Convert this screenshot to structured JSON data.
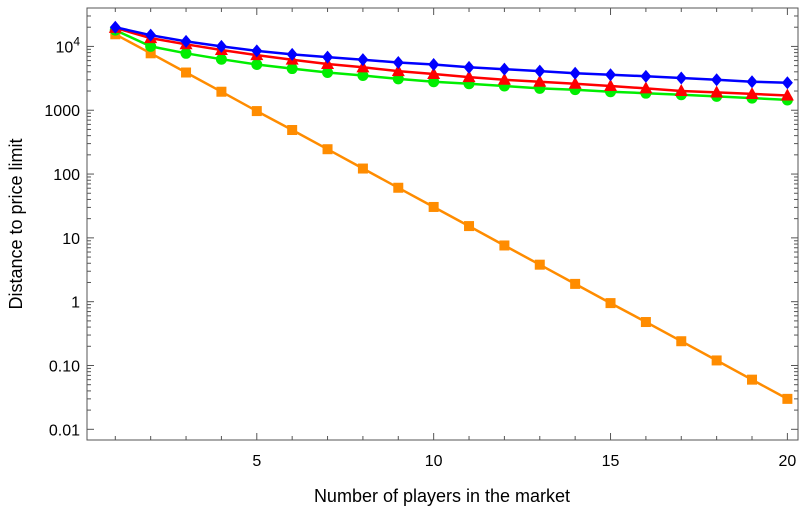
{
  "chart_data": {
    "type": "line",
    "title": "",
    "xlabel": "Number of players in the market",
    "ylabel": "Distance to price limit",
    "xlim": [
      0.2,
      20.3
    ],
    "ylim": [
      0.0068,
      40000
    ],
    "y_scale": "log",
    "grid": false,
    "legend": "none",
    "x_ticks": [
      {
        "value": 5,
        "label": "5"
      },
      {
        "value": 10,
        "label": "10"
      },
      {
        "value": 15,
        "label": "15"
      },
      {
        "value": 20,
        "label": "20"
      }
    ],
    "y_ticks": [
      {
        "value": 0.01,
        "label": "0.01"
      },
      {
        "value": 0.1,
        "label": "0.10"
      },
      {
        "value": 1,
        "label": "1"
      },
      {
        "value": 10,
        "label": "10"
      },
      {
        "value": 100,
        "label": "100"
      },
      {
        "value": 1000,
        "label": "1000"
      },
      {
        "value": 10000,
        "label": "10",
        "exponent": "4"
      }
    ],
    "x": [
      1,
      2,
      3,
      4,
      5,
      6,
      7,
      8,
      9,
      10,
      11,
      12,
      13,
      14,
      15,
      16,
      17,
      18,
      19,
      20
    ],
    "series": [
      {
        "color": "#0000ff",
        "marker": "diamond",
        "values": [
          20000,
          15000,
          12000,
          10000,
          8500,
          7500,
          6800,
          6200,
          5600,
          5200,
          4700,
          4400,
          4100,
          3800,
          3600,
          3400,
          3200,
          3000,
          2800,
          2700
        ]
      },
      {
        "color": "#ff0000",
        "marker": "triangle",
        "values": [
          19500,
          13500,
          10800,
          8800,
          7300,
          6200,
          5300,
          4700,
          4100,
          3700,
          3300,
          3000,
          2800,
          2600,
          2400,
          2200,
          2000,
          1900,
          1800,
          1700
        ]
      },
      {
        "color": "#00ee00",
        "marker": "circle",
        "values": [
          18000,
          10000,
          7800,
          6300,
          5200,
          4500,
          3900,
          3500,
          3100,
          2800,
          2600,
          2400,
          2200,
          2100,
          1950,
          1850,
          1750,
          1650,
          1550,
          1450
        ]
      },
      {
        "color": "#ff8c00",
        "marker": "square",
        "values": [
          15500,
          7800,
          3900,
          1950,
          970,
          490,
          245,
          122,
          61,
          30.5,
          15.3,
          7.6,
          3.8,
          1.9,
          0.95,
          0.48,
          0.24,
          0.12,
          0.06,
          0.03
        ]
      }
    ]
  }
}
